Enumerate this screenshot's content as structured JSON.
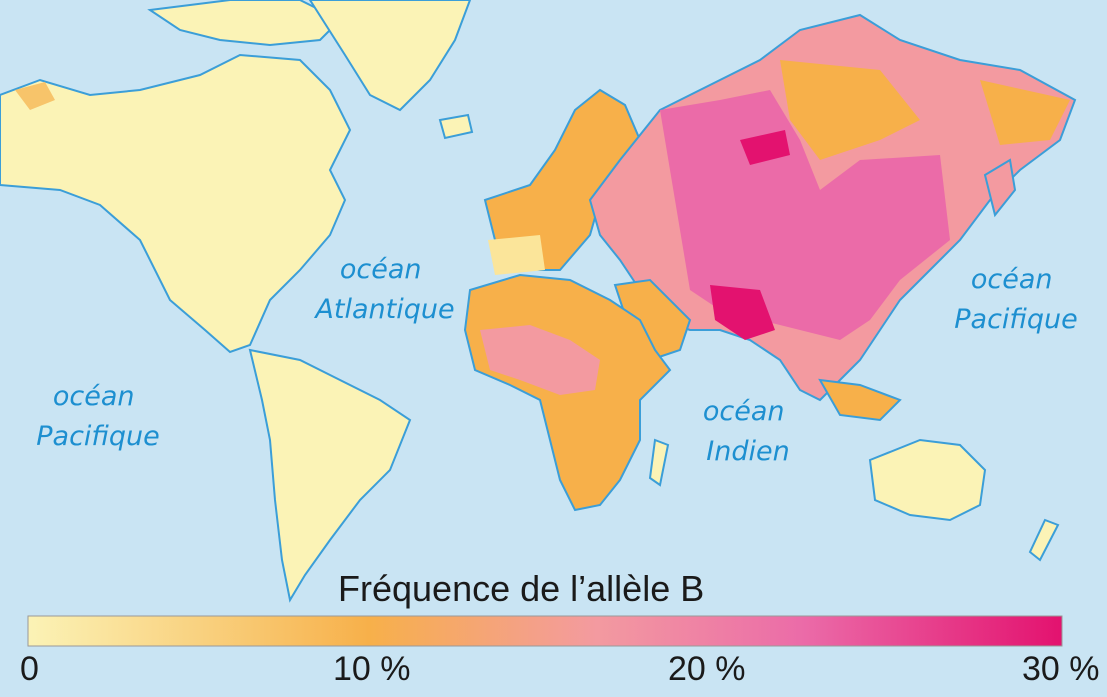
{
  "ocean_labels": {
    "atlantic": [
      "océan",
      "Atlantique"
    ],
    "pacific_west": [
      "océan",
      "Pacifique"
    ],
    "pacific_east": [
      "océan",
      "Pacifique"
    ],
    "indian": [
      "océan",
      "Indien"
    ]
  },
  "legend": {
    "title": "Fréquence de l’allèle B",
    "ticks": [
      "0",
      "10 %",
      "20 %",
      "30 %"
    ],
    "scale": {
      "min": 0,
      "max": 30,
      "unit": "%"
    }
  },
  "colors": {
    "ocean": "#c9e4f3",
    "coast": "#3b9ed8",
    "c0": "#fbf3b6",
    "c10": "#f7b04a",
    "c15": "#f39aa0",
    "c20": "#eb6ba8",
    "c30": "#e3126f"
  },
  "regions": [
    {
      "name": "americas",
      "frequency_band": "0-5 %"
    },
    {
      "name": "western-europe",
      "frequency_band": "5-10 %"
    },
    {
      "name": "africa",
      "frequency_band": "10-20 %"
    },
    {
      "name": "central-asia",
      "frequency_band": "20-30 %"
    },
    {
      "name": "australia",
      "frequency_band": "0-5 %"
    }
  ]
}
